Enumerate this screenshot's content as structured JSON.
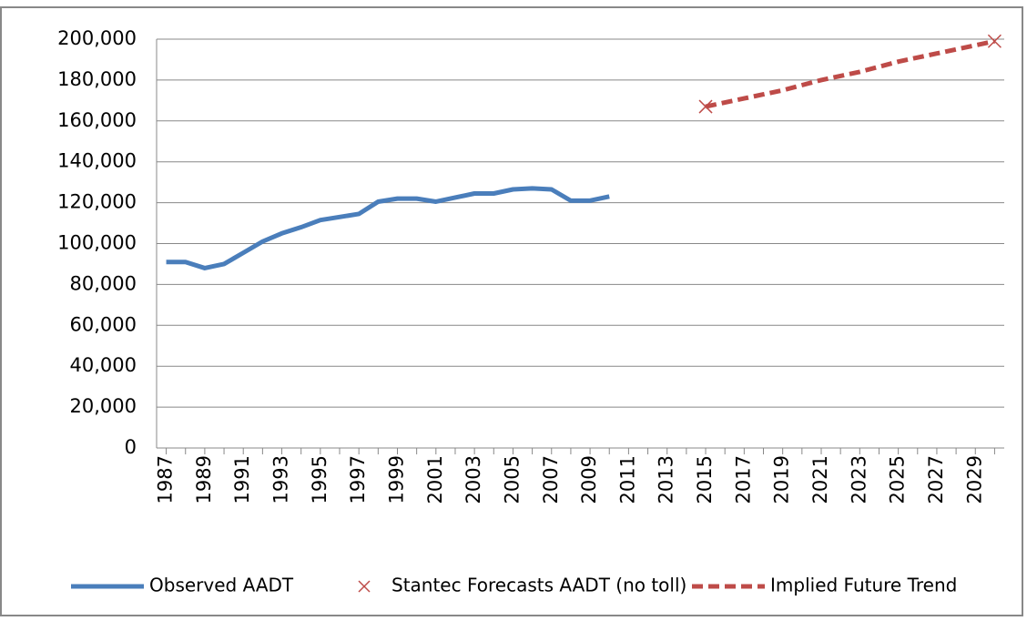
{
  "chart_data": {
    "type": "line",
    "categories": [
      "1987",
      null,
      "1989",
      null,
      "1991",
      null,
      "1993",
      null,
      "1995",
      null,
      "1997",
      null,
      "1999",
      null,
      "2001",
      null,
      "2003",
      null,
      "2005",
      null,
      "2007",
      null,
      "2009",
      null,
      "2011",
      null,
      "2013",
      null,
      "2015",
      null,
      "2017",
      null,
      "2019",
      null,
      "2021",
      null,
      "2023",
      null,
      "2025",
      null,
      "2027",
      null,
      "2029",
      null
    ],
    "series": [
      {
        "name": "Observed AADT",
        "color": "#4a7ebb",
        "style": "solid",
        "values": [
          91000,
          91000,
          88000,
          90000,
          95500,
          101000,
          105000,
          108000,
          111500,
          113000,
          114500,
          120500,
          122000,
          122000,
          120500,
          122500,
          124500,
          124500,
          126500,
          127000,
          126500,
          121000,
          121000,
          123000,
          null,
          null,
          null,
          null,
          null,
          null,
          null,
          null,
          null,
          null,
          null,
          null,
          null,
          null,
          null,
          null,
          null,
          null,
          null,
          null
        ]
      },
      {
        "name": "Stantec Forecasts AADT (no toll)",
        "color": "#be4b48",
        "style": "marker",
        "values": [
          null,
          null,
          null,
          null,
          null,
          null,
          null,
          null,
          null,
          null,
          null,
          null,
          null,
          null,
          null,
          null,
          null,
          null,
          null,
          null,
          null,
          null,
          null,
          null,
          null,
          null,
          null,
          null,
          167000,
          null,
          null,
          null,
          null,
          null,
          null,
          null,
          null,
          null,
          null,
          null,
          null,
          null,
          null,
          199000
        ]
      },
      {
        "name": "Implied Future Trend",
        "color": "#be4b48",
        "style": "dashed",
        "values": [
          null,
          null,
          null,
          null,
          null,
          null,
          null,
          null,
          null,
          null,
          null,
          null,
          null,
          null,
          null,
          null,
          null,
          null,
          null,
          null,
          null,
          null,
          null,
          null,
          null,
          null,
          null,
          null,
          167000,
          169000,
          171000,
          173000,
          175000,
          177500,
          180000,
          182000,
          184000,
          186500,
          189000,
          191000,
          193000,
          195000,
          197000,
          199000
        ]
      }
    ],
    "ylim": [
      0,
      200000
    ],
    "yticks": [
      0,
      {
        "value": 20000,
        "label": "20,000"
      },
      {
        "value": 40000,
        "label": "40,000"
      },
      {
        "value": 60000,
        "label": "60,000"
      },
      {
        "value": 80000,
        "label": "80,000"
      },
      {
        "value": 100000,
        "label": "100,000"
      },
      {
        "value": 120000,
        "label": "120,000"
      },
      {
        "value": 140000,
        "label": "140,000"
      },
      {
        "value": 160000,
        "label": "160,000"
      },
      {
        "value": 180000,
        "label": "180,000"
      },
      {
        "value": 200000,
        "label": "200,000"
      }
    ],
    "grid": true,
    "legend": "bottom"
  }
}
